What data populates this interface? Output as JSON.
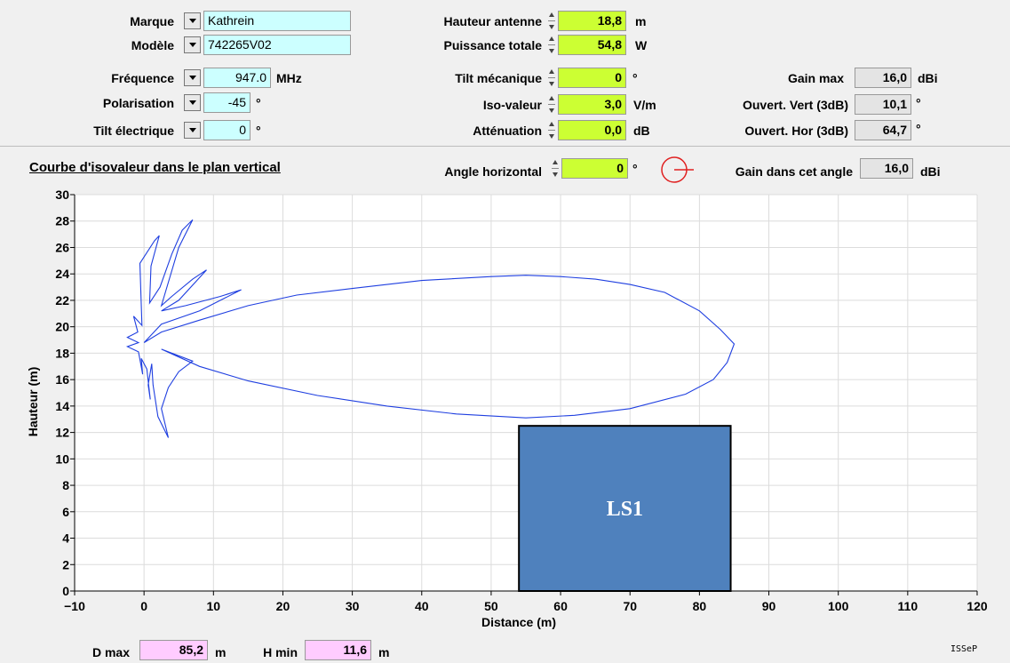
{
  "antenna": {
    "brand_label": "Marque",
    "brand_value": "Kathrein",
    "model_label": "Modèle",
    "model_value": "742265V02",
    "frequency_label": "Fréquence",
    "frequency_value": "947.0",
    "frequency_unit": "MHz",
    "polarisation_label": "Polarisation",
    "polarisation_value": "-45",
    "polarisation_unit": "°",
    "electrical_tilt_label": "Tilt électrique",
    "electrical_tilt_value": "0",
    "electrical_tilt_unit": "°"
  },
  "params": {
    "height_label": "Hauteur antenne",
    "height_value": "18,8",
    "height_unit": "m",
    "power_label": "Puissance totale",
    "power_value": "54,8",
    "power_unit": "W",
    "mech_tilt_label": "Tilt mécanique",
    "mech_tilt_value": "0",
    "mech_tilt_unit": "°",
    "iso_label": "Iso-valeur",
    "iso_value": "3,0",
    "iso_unit": "V/m",
    "atten_label": "Atténuation",
    "atten_value": "0,0",
    "atten_unit": "dB"
  },
  "gain": {
    "max_label": "Gain max",
    "max_value": "16,0",
    "max_unit": "dBi",
    "vert_label": "Ouvert. Vert (3dB)",
    "vert_value": "10,1",
    "vert_unit": "°",
    "hor_label": "Ouvert. Hor (3dB)",
    "hor_value": "64,7",
    "hor_unit": "°"
  },
  "chart_section": {
    "title": "Courbe d'isovaleur dans le plan vertical",
    "angle_label": "Angle horizontal",
    "angle_value": "0",
    "angle_unit": "°",
    "gain_angle_label": "Gain dans cet angle",
    "gain_angle_value": "16,0",
    "gain_angle_unit": "dBi"
  },
  "bottom": {
    "dmax_label": "D max",
    "dmax_value": "85,2",
    "dmax_unit": "m",
    "hmin_label": "H min",
    "hmin_value": "11,6",
    "hmin_unit": "m",
    "footer": "ISSeP"
  },
  "colors": {
    "curve": "#1f3fe0",
    "building_fill": "#4f81bd",
    "input_cyan": "#ccffff",
    "input_lime": "#ccff33",
    "input_pink": "#ffccff",
    "compass": "#e02020"
  },
  "chart_data": {
    "type": "line",
    "xlabel": "Distance (m)",
    "ylabel": "Hauteur (m)",
    "xlim": [
      -10,
      120
    ],
    "ylim": [
      0,
      30
    ],
    "xticks": [
      -10,
      0,
      10,
      20,
      30,
      40,
      50,
      60,
      70,
      80,
      90,
      100,
      110,
      120
    ],
    "yticks": [
      0,
      2,
      4,
      6,
      8,
      10,
      12,
      14,
      16,
      18,
      20,
      22,
      24,
      26,
      28,
      30
    ],
    "grid": true,
    "series": [
      {
        "points": [
          [
            0,
            18.8
          ],
          [
            2.5,
            19.6
          ],
          [
            8,
            20.5
          ],
          [
            15,
            21.6
          ],
          [
            22,
            22.4
          ],
          [
            30,
            22.9
          ],
          [
            40,
            23.5
          ],
          [
            50,
            23.8
          ],
          [
            55,
            23.9
          ],
          [
            60,
            23.8
          ],
          [
            65,
            23.6
          ],
          [
            70,
            23.2
          ],
          [
            75,
            22.6
          ],
          [
            80,
            21.2
          ],
          [
            83,
            19.8
          ],
          [
            85,
            18.7
          ],
          [
            84,
            17.3
          ],
          [
            82,
            16.0
          ],
          [
            78,
            14.9
          ],
          [
            70,
            13.8
          ],
          [
            62,
            13.3
          ],
          [
            55,
            13.1
          ],
          [
            45,
            13.4
          ],
          [
            35,
            14.0
          ],
          [
            25,
            14.8
          ],
          [
            15,
            15.9
          ],
          [
            8,
            17.0
          ],
          [
            2.5,
            18.3
          ],
          [
            7,
            17.4
          ],
          [
            5,
            16.6
          ],
          [
            3.5,
            15.4
          ],
          [
            2.5,
            13.8
          ],
          [
            3.5,
            11.6
          ],
          [
            2,
            13.2
          ],
          [
            1.3,
            15.6
          ],
          [
            1.1,
            17.2
          ],
          [
            0.6,
            15.6
          ],
          [
            0.9,
            14.5
          ],
          [
            0.4,
            16.8
          ],
          [
            -0.4,
            17.6
          ],
          [
            -0.2,
            16.4
          ],
          [
            -0.8,
            18.1
          ],
          [
            -2.4,
            18.5
          ],
          [
            -0.8,
            18.8
          ],
          [
            -2.4,
            19.2
          ],
          [
            -0.9,
            19.6
          ],
          [
            -1.5,
            20.8
          ],
          [
            -0.3,
            20.1
          ],
          [
            -0.6,
            24.8
          ],
          [
            1.5,
            26.5
          ],
          [
            2.2,
            26.9
          ],
          [
            1,
            24.6
          ],
          [
            0.8,
            21.8
          ],
          [
            2.3,
            23.0
          ],
          [
            4,
            25.5
          ],
          [
            5.5,
            27.3
          ],
          [
            7,
            28.1
          ],
          [
            5,
            26.0
          ],
          [
            2.5,
            21.6
          ],
          [
            4,
            22.3
          ],
          [
            7,
            23.6
          ],
          [
            9,
            24.3
          ],
          [
            5,
            22.0
          ],
          [
            2.5,
            21.2
          ],
          [
            6,
            21.6
          ],
          [
            11,
            22.3
          ],
          [
            14,
            22.8
          ],
          [
            8,
            21.2
          ],
          [
            2.5,
            20.2
          ],
          [
            0,
            18.8
          ]
        ]
      }
    ],
    "annotations": [
      {
        "label": "LS1",
        "x_range": [
          54,
          84.5
        ],
        "y_range": [
          0,
          12.5
        ]
      }
    ]
  }
}
